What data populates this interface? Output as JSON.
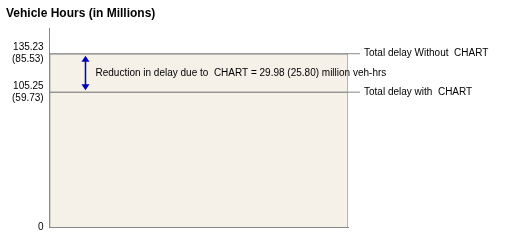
{
  "chart_data": {
    "type": "bar",
    "title": "Vehicle Hours (in Millions)",
    "categories": [
      null
    ],
    "series": [
      {
        "name": "Total delay Without  CHART",
        "color": "#f5f0e8",
        "values": [
          135.23
        ]
      },
      {
        "name": "Total delay with  CHART",
        "color": "#f5f0e8",
        "values": [
          105.25
        ]
      }
    ],
    "ylim": [
      0,
      155
    ],
    "yticks": [
      0,
      105.25,
      135.23
    ],
    "annotations": [
      {
        "text": "(85.53)",
        "y": 135.23
      },
      {
        "text": "(59.73)",
        "y": 105.25
      },
      {
        "text": "Reduction in delay due to  CHART = 29.98 (25.80) million veh-hrs",
        "arrow": [
          105.25,
          135.23
        ],
        "color": "#0000bb"
      }
    ],
    "tick_labels": "y",
    "grid": false,
    "legend": false
  }
}
